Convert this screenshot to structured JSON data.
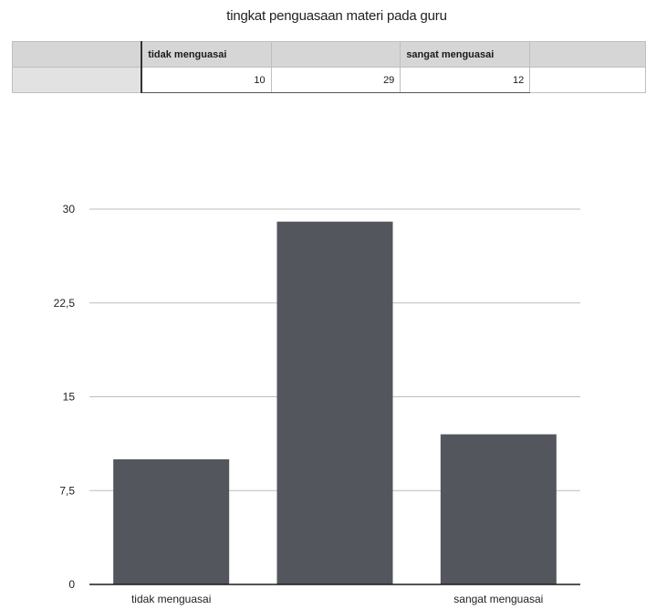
{
  "table": {
    "header_cells": [
      "",
      "tidak menguasai",
      "",
      "sangat menguasai",
      ""
    ],
    "value_cells": [
      "",
      "10",
      "29",
      "12",
      ""
    ]
  },
  "chart_data": {
    "type": "bar",
    "title": "tingkat penguasaan materi pada guru",
    "categories": [
      "tidak menguasai",
      "",
      "sangat menguasai"
    ],
    "values": [
      10,
      29,
      12
    ],
    "ylim": [
      0,
      30
    ],
    "yticks": [
      "0",
      "7,5",
      "15",
      "22,5",
      "30"
    ],
    "ytick_values": [
      0,
      7.5,
      15,
      22.5,
      30
    ],
    "grid": true,
    "bar_color": "#53565c",
    "xlabel": "",
    "ylabel": ""
  }
}
